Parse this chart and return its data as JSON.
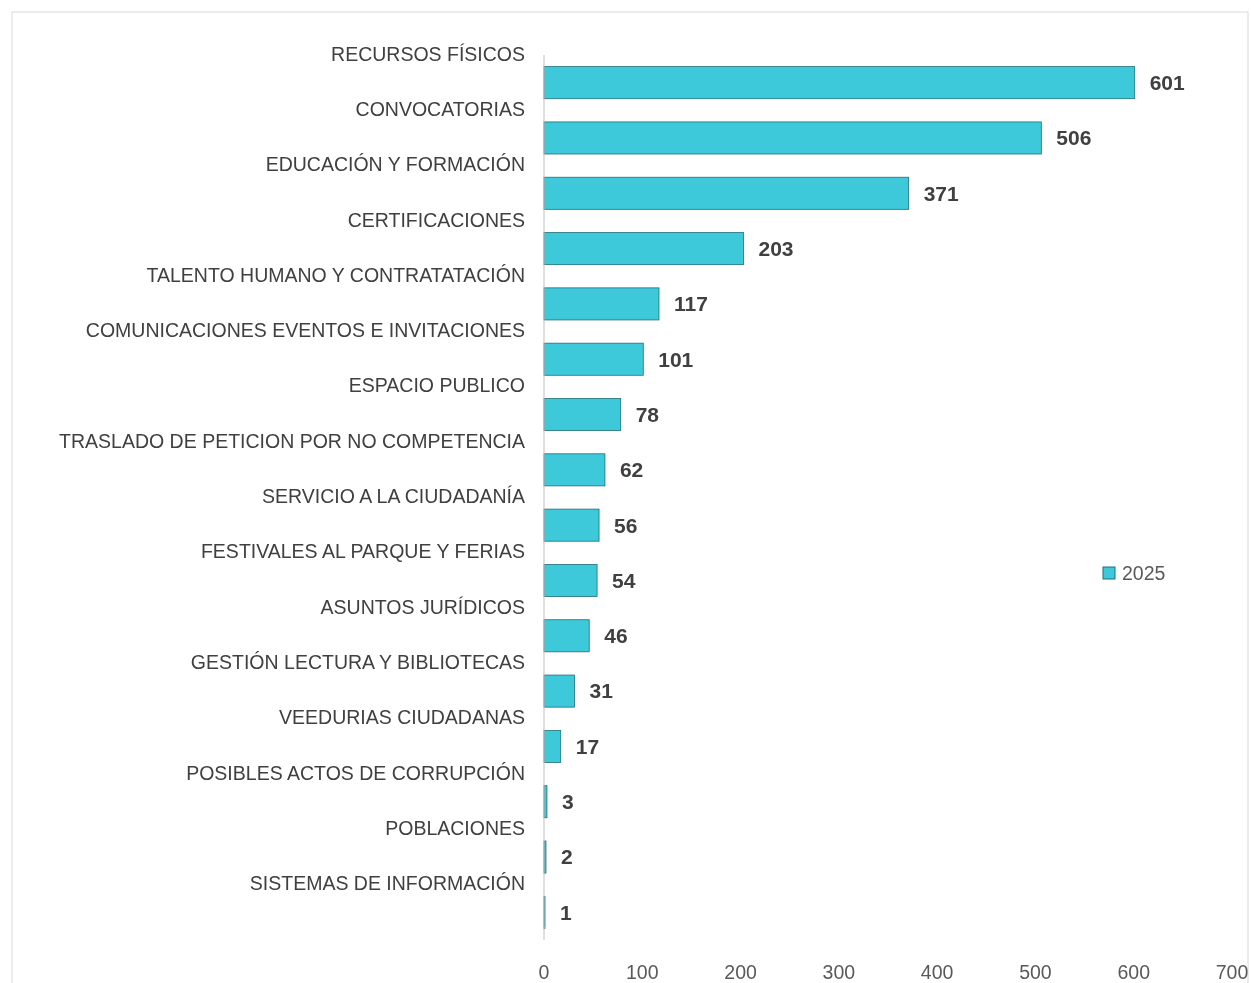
{
  "chart_data": {
    "type": "bar",
    "orientation": "horizontal",
    "categories": [
      "RECURSOS FÍSICOS",
      "CONVOCATORIAS",
      "EDUCACIÓN Y FORMACIÓN",
      "CERTIFICACIONES",
      "TALENTO HUMANO Y CONTRATATACIÓN",
      "COMUNICACIONES EVENTOS E INVITACIONES",
      "ESPACIO PUBLICO",
      "TRASLADO DE PETICION POR NO COMPETENCIA",
      "SERVICIO A LA CIUDADANÍA",
      "FESTIVALES AL PARQUE Y FERIAS",
      "ASUNTOS JURÍDICOS",
      "GESTIÓN LECTURA Y BIBLIOTECAS",
      "VEEDURIAS CIUDADANAS",
      "POSIBLES ACTOS DE CORRUPCIÓN",
      "POBLACIONES",
      "SISTEMAS DE INFORMACIÓN"
    ],
    "series": [
      {
        "name": "2025",
        "color": "#3ec9da",
        "values": [
          601,
          506,
          371,
          203,
          117,
          101,
          78,
          62,
          56,
          54,
          46,
          31,
          17,
          3,
          2,
          1
        ]
      }
    ],
    "xlim": [
      0,
      700
    ],
    "xticks": [
      0,
      100,
      200,
      300,
      400,
      500,
      600,
      700
    ],
    "data_labels": true,
    "legend": "right",
    "grid": false
  }
}
